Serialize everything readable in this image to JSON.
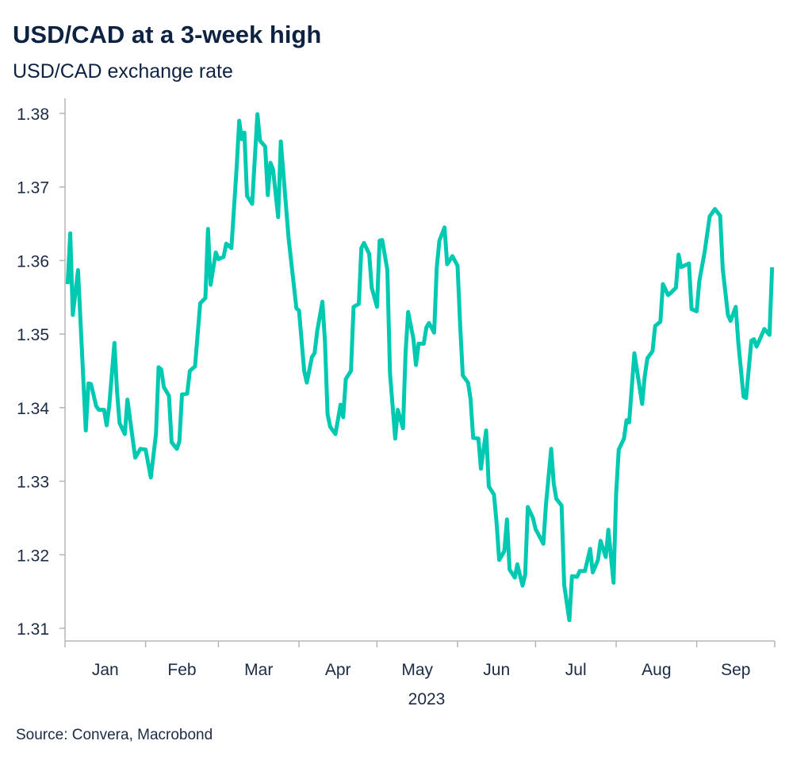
{
  "chart_data": {
    "type": "line",
    "title": "USD/CAD at a 3-week high",
    "subtitle": "USD/CAD exchange rate",
    "xlabel": "2023",
    "ylabel": "",
    "source": "Source: Convera, Macrobond",
    "ylim": [
      1.31,
      1.38
    ],
    "yticks": [
      "1.31",
      "1.32",
      "1.33",
      "1.34",
      "1.35",
      "1.36",
      "1.37",
      "1.38"
    ],
    "xlim": [
      "2023-01-01",
      "2023-10-01"
    ],
    "xtick_labels": [
      "Jan",
      "Feb",
      "Mar",
      "Apr",
      "May",
      "Jun",
      "Jul",
      "Aug",
      "Sep"
    ],
    "grid": false,
    "line_color": "#00c9b1",
    "series": [
      {
        "x": [
          "2023-01-02",
          "2023-01-03",
          "2023-01-04",
          "2023-01-06",
          "2023-01-09",
          "2023-01-10",
          "2023-01-11",
          "2023-01-13",
          "2023-01-14",
          "2023-01-16",
          "2023-01-17",
          "2023-01-18",
          "2023-01-20",
          "2023-01-21",
          "2023-01-22",
          "2023-01-24",
          "2023-01-25",
          "2023-01-28",
          "2023-01-30",
          "2023-02-01",
          "2023-02-03",
          "2023-02-05",
          "2023-02-06",
          "2023-02-07",
          "2023-02-08",
          "2023-02-10",
          "2023-02-11",
          "2023-02-13",
          "2023-02-14",
          "2023-02-15",
          "2023-02-17",
          "2023-02-18",
          "2023-02-20",
          "2023-02-22",
          "2023-02-24",
          "2023-02-25",
          "2023-02-26",
          "2023-02-28",
          "2023-03-01",
          "2023-03-03",
          "2023-03-04",
          "2023-03-06",
          "2023-03-08",
          "2023-03-09",
          "2023-03-10",
          "2023-03-11",
          "2023-03-12",
          "2023-03-14",
          "2023-03-16",
          "2023-03-17",
          "2023-03-19",
          "2023-03-20",
          "2023-03-21",
          "2023-03-22",
          "2023-03-24",
          "2023-03-25",
          "2023-03-28",
          "2023-03-31",
          "2023-04-01",
          "2023-04-03",
          "2023-04-04",
          "2023-04-06",
          "2023-04-07",
          "2023-04-08",
          "2023-04-10",
          "2023-04-11",
          "2023-04-12",
          "2023-04-13",
          "2023-04-15",
          "2023-04-17",
          "2023-04-18",
          "2023-04-19",
          "2023-04-21",
          "2023-04-22",
          "2023-04-24",
          "2023-04-25",
          "2023-04-26",
          "2023-04-28",
          "2023-04-29",
          "2023-05-01",
          "2023-05-02",
          "2023-05-03",
          "2023-05-05",
          "2023-05-06",
          "2023-05-08",
          "2023-05-09",
          "2023-05-11",
          "2023-05-12",
          "2023-05-13",
          "2023-05-15",
          "2023-05-16",
          "2023-05-17",
          "2023-05-19",
          "2023-05-20",
          "2023-05-21",
          "2023-05-23",
          "2023-05-24",
          "2023-05-25",
          "2023-05-27",
          "2023-05-28",
          "2023-05-30",
          "2023-06-01",
          "2023-06-02",
          "2023-06-03",
          "2023-06-05",
          "2023-06-06",
          "2023-06-07",
          "2023-06-09",
          "2023-06-10",
          "2023-06-12",
          "2023-06-13",
          "2023-06-15",
          "2023-06-16",
          "2023-06-17",
          "2023-06-19",
          "2023-06-20",
          "2023-06-21",
          "2023-06-23",
          "2023-06-24",
          "2023-06-26",
          "2023-06-27",
          "2023-06-28",
          "2023-06-30",
          "2023-07-01",
          "2023-07-04",
          "2023-07-05",
          "2023-07-07",
          "2023-07-08",
          "2023-07-09",
          "2023-07-11",
          "2023-07-12",
          "2023-07-14",
          "2023-07-15",
          "2023-07-17",
          "2023-07-18",
          "2023-07-20",
          "2023-07-22",
          "2023-07-23",
          "2023-07-25",
          "2023-07-26",
          "2023-07-28",
          "2023-07-29",
          "2023-07-31",
          "2023-08-01",
          "2023-08-02",
          "2023-08-04",
          "2023-08-05",
          "2023-08-06",
          "2023-08-08",
          "2023-08-11",
          "2023-08-12",
          "2023-08-13",
          "2023-08-15",
          "2023-08-16",
          "2023-08-18",
          "2023-08-19",
          "2023-08-21",
          "2023-08-22",
          "2023-08-24",
          "2023-08-25",
          "2023-08-26",
          "2023-08-29",
          "2023-08-30",
          "2023-09-01",
          "2023-09-02",
          "2023-09-04",
          "2023-09-06",
          "2023-09-08",
          "2023-09-10",
          "2023-09-11",
          "2023-09-13",
          "2023-09-14",
          "2023-09-16",
          "2023-09-17",
          "2023-09-19",
          "2023-09-20",
          "2023-09-22",
          "2023-09-23",
          "2023-09-24",
          "2023-09-27",
          "2023-09-29",
          "2023-09-30"
        ],
        "y": [
          1.3568,
          1.3637,
          1.3526,
          1.3587,
          1.3369,
          1.3433,
          1.3432,
          1.3402,
          1.3397,
          1.3397,
          1.3376,
          1.3402,
          1.3488,
          1.3422,
          1.3379,
          1.3364,
          1.3411,
          1.3332,
          1.3344,
          1.3343,
          1.3305,
          1.3364,
          1.3455,
          1.3452,
          1.3428,
          1.3416,
          1.3353,
          1.3344,
          1.3354,
          1.3418,
          1.3419,
          1.345,
          1.3456,
          1.3542,
          1.3549,
          1.3643,
          1.3567,
          1.3611,
          1.3602,
          1.3605,
          1.3623,
          1.3617,
          1.3726,
          1.379,
          1.3765,
          1.3774,
          1.3688,
          1.3677,
          1.3799,
          1.3763,
          1.3755,
          1.3689,
          1.3733,
          1.3724,
          1.3659,
          1.3762,
          1.3631,
          1.3535,
          1.3532,
          1.345,
          1.3434,
          1.3469,
          1.3474,
          1.3504,
          1.3544,
          1.349,
          1.3391,
          1.3374,
          1.3364,
          1.3404,
          1.3387,
          1.3439,
          1.345,
          1.3537,
          1.3541,
          1.3617,
          1.3624,
          1.3609,
          1.3563,
          1.3537,
          1.3627,
          1.3628,
          1.3587,
          1.3447,
          1.3358,
          1.3397,
          1.3372,
          1.3476,
          1.353,
          1.3494,
          1.3458,
          1.3487,
          1.3487,
          1.3509,
          1.3515,
          1.3502,
          1.3591,
          1.3627,
          1.3645,
          1.3595,
          1.3606,
          1.3593,
          1.3512,
          1.3444,
          1.3434,
          1.3412,
          1.3359,
          1.3358,
          1.3317,
          1.3369,
          1.3293,
          1.3282,
          1.3244,
          1.3193,
          1.3205,
          1.3248,
          1.318,
          1.3169,
          1.3187,
          1.3158,
          1.3173,
          1.3265,
          1.325,
          1.3235,
          1.3215,
          1.3268,
          1.3344,
          1.3297,
          1.3276,
          1.3267,
          1.3159,
          1.3111,
          1.3171,
          1.317,
          1.3178,
          1.3178,
          1.3208,
          1.3176,
          1.3193,
          1.3219,
          1.3197,
          1.3234,
          1.3162,
          1.3283,
          1.3343,
          1.3358,
          1.3383,
          1.338,
          1.3474,
          1.3405,
          1.3443,
          1.3467,
          1.3477,
          1.3511,
          1.3517,
          1.3568,
          1.3553,
          1.3556,
          1.3563,
          1.3608,
          1.3591,
          1.3596,
          1.3534,
          1.3531,
          1.3572,
          1.3611,
          1.366,
          1.367,
          1.3661,
          1.3589,
          1.3526,
          1.3518,
          1.3537,
          1.3488,
          1.3415,
          1.3413,
          1.3491,
          1.3493,
          1.3483,
          1.3507,
          1.3499,
          1.3591
        ]
      }
    ]
  }
}
